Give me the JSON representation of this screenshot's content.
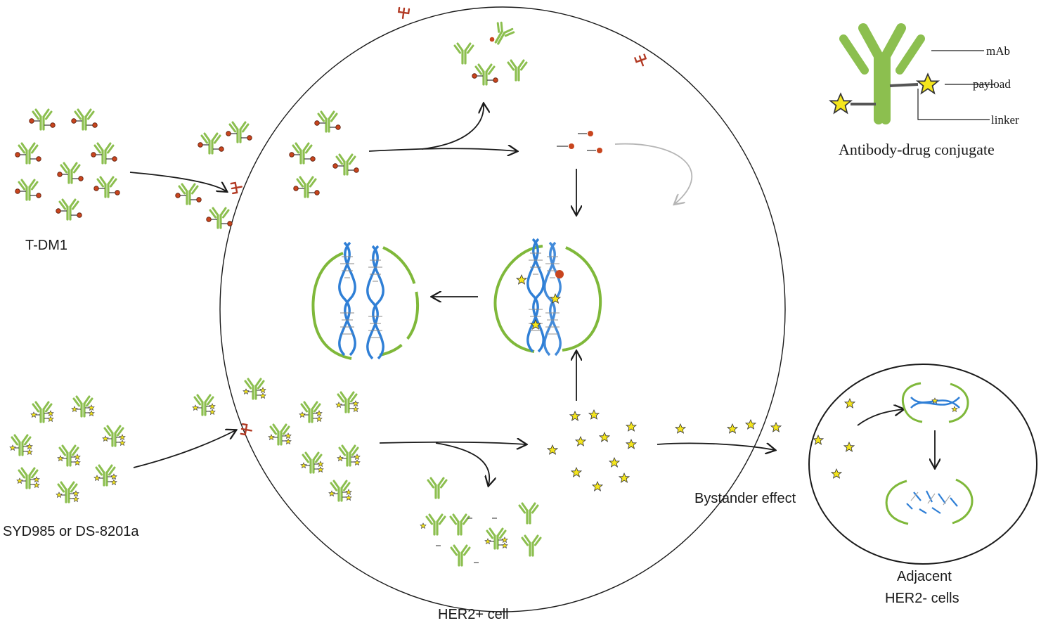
{
  "labels": {
    "tdm1": "T-DM1",
    "syd985": "SYD985 or DS-8201a",
    "her2_cell": "HER2+ cell",
    "bystander": "Bystander effect",
    "adjacent_line1": "Adjacent",
    "adjacent_line2": "HER2- cells"
  },
  "legend": {
    "mab": "mAb",
    "payload": "payload",
    "linker": "linker",
    "title": "Antibody-drug conjugate"
  },
  "colors": {
    "antibody": "#8cbf4f",
    "payload_tdm1": "#c8451e",
    "payload_star": "#f5e61c",
    "dna": "#2f7fd6",
    "nucleus": "#7fb83a",
    "receptor": "#b23a24",
    "arrow": "#1a1a1a",
    "arrow_grey": "#b5b5b5"
  }
}
